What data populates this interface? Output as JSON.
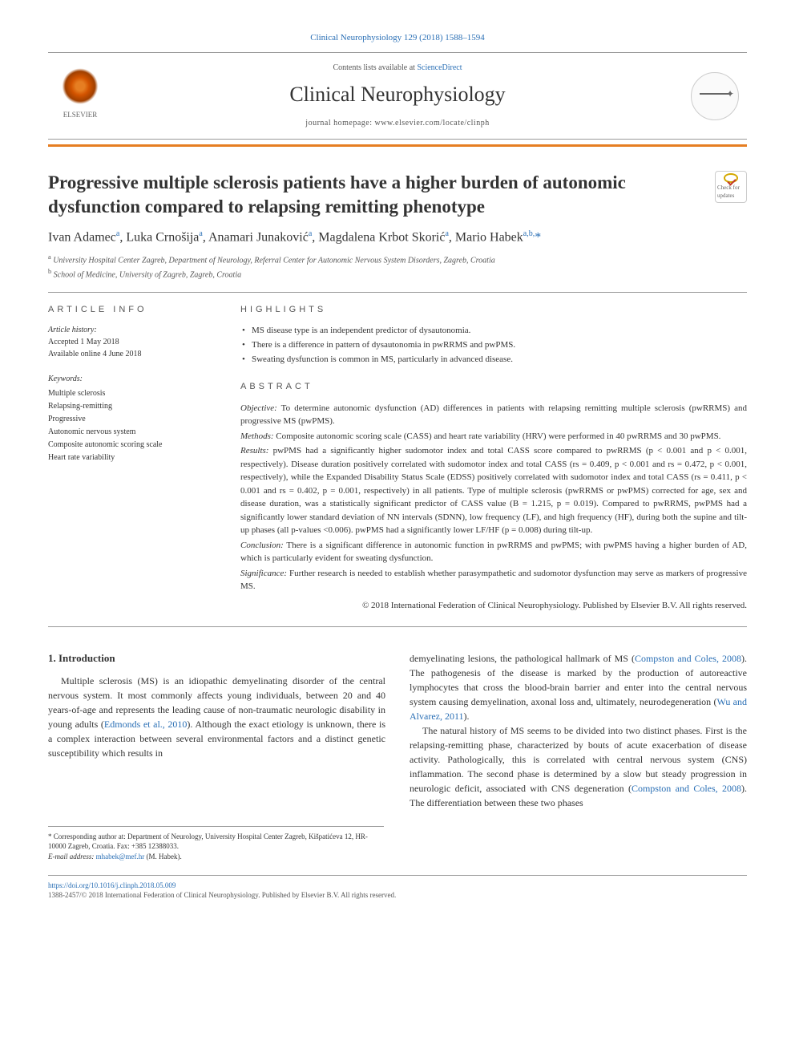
{
  "header": {
    "citation": "Clinical Neurophysiology 129 (2018) 1588–1594",
    "contents_prefix": "Contents lists available at ",
    "contents_link": "ScienceDirect",
    "journal_name": "Clinical Neurophysiology",
    "homepage_prefix": "journal homepage: ",
    "homepage_url": "www.elsevier.com/locate/clinph",
    "publisher_name": "ELSEVIER"
  },
  "article": {
    "title": "Progressive multiple sclerosis patients have a higher burden of autonomic dysfunction compared to relapsing remitting phenotype",
    "check_badge": "Check for updates",
    "authors_html": "Ivan Adamec<sup>a</sup>, Luka Crnošija<sup>a</sup>, Anamari Junaković<sup>a</sup>, Magdalena Krbot Skorić<sup>a</sup>, Mario Habek<sup>a,b,</sup><span class='corr'>*</span>",
    "affiliations": [
      {
        "sup": "a",
        "text": "University Hospital Center Zagreb, Department of Neurology, Referral Center for Autonomic Nervous System Disorders, Zagreb, Croatia"
      },
      {
        "sup": "b",
        "text": "School of Medicine, University of Zagreb, Zagreb, Croatia"
      }
    ]
  },
  "info": {
    "heading": "ARTICLE INFO",
    "history_label": "Article history:",
    "accepted": "Accepted 1 May 2018",
    "online": "Available online 4 June 2018",
    "keywords_label": "Keywords:",
    "keywords": [
      "Multiple sclerosis",
      "Relapsing-remitting",
      "Progressive",
      "Autonomic nervous system",
      "Composite autonomic scoring scale",
      "Heart rate variability"
    ]
  },
  "highlights": {
    "heading": "HIGHLIGHTS",
    "items": [
      "MS disease type is an independent predictor of dysautonomia.",
      "There is a difference in pattern of dysautonomia in pwRRMS and pwPMS.",
      "Sweating dysfunction is common in MS, particularly in advanced disease."
    ]
  },
  "abstract": {
    "heading": "ABSTRACT",
    "sections": [
      {
        "label": "Objective:",
        "text": " To determine autonomic dysfunction (AD) differences in patients with relapsing remitting multiple sclerosis (pwRRMS) and progressive MS (pwPMS)."
      },
      {
        "label": "Methods:",
        "text": " Composite autonomic scoring scale (CASS) and heart rate variability (HRV) were performed in 40 pwRRMS and 30 pwPMS."
      },
      {
        "label": "Results:",
        "text": " pwPMS had a significantly higher sudomotor index and total CASS score compared to pwRRMS (p < 0.001 and p < 0.001, respectively). Disease duration positively correlated with sudomotor index and total CASS (rs = 0.409, p < 0.001 and rs = 0.472, p < 0.001, respectively), while the Expanded Disability Status Scale (EDSS) positively correlated with sudomotor index and total CASS (rs = 0.411, p < 0.001 and rs = 0.402, p = 0.001, respectively) in all patients. Type of multiple sclerosis (pwRRMS or pwPMS) corrected for age, sex and disease duration, was a statistically significant predictor of CASS value (B = 1.215, p = 0.019). Compared to pwRRMS, pwPMS had a significantly lower standard deviation of NN intervals (SDNN), low frequency (LF), and high frequency (HF), during both the supine and tilt-up phases (all p-values <0.006). pwPMS had a significantly lower LF/HF (p = 0.008) during tilt-up."
      },
      {
        "label": "Conclusion:",
        "text": " There is a significant difference in autonomic function in pwRRMS and pwPMS; with pwPMS having a higher burden of AD, which is particularly evident for sweating dysfunction."
      },
      {
        "label": "Significance:",
        "text": " Further research is needed to establish whether parasympathetic and sudomotor dysfunction may serve as markers of progressive MS."
      }
    ],
    "copyright": "© 2018 International Federation of Clinical Neurophysiology. Published by Elsevier B.V. All rights reserved."
  },
  "body": {
    "intro_heading": "1. Introduction",
    "col1_p1_pre": "Multiple sclerosis (MS) is an idiopathic demyelinating disorder of the central nervous system. It most commonly affects young individuals, between 20 and 40 years-of-age and represents the leading cause of non-traumatic neurologic disability in young adults (",
    "col1_p1_link": "Edmonds et al., 2010",
    "col1_p1_post": "). Although the exact etiology is unknown, there is a complex interaction between several environmental factors and a distinct genetic susceptibility which results in",
    "col2_p1_pre": "demyelinating lesions, the pathological hallmark of MS (",
    "col2_p1_link1": "Compston and Coles, 2008",
    "col2_p1_mid": "). The pathogenesis of the disease is marked by the production of autoreactive lymphocytes that cross the blood-brain barrier and enter into the central nervous system causing demyelination, axonal loss and, ultimately, neurodegeneration (",
    "col2_p1_link2": "Wu and Alvarez, 2011",
    "col2_p1_post": ").",
    "col2_p2_pre": "The natural history of MS seems to be divided into two distinct phases. First is the relapsing-remitting phase, characterized by bouts of acute exacerbation of disease activity. Pathologically, this is correlated with central nervous system (CNS) inflammation. The second phase is determined by a slow but steady progression in neurologic deficit, associated with CNS degeneration (",
    "col2_p2_link": "Compston and Coles, 2008",
    "col2_p2_post": "). The differentiation between these two phases"
  },
  "footnotes": {
    "corr_marker": "*",
    "corr_text": " Corresponding author at: Department of Neurology, University Hospital Center Zagreb, Kišpatićeva 12, HR-10000 Zagreb, Croatia. Fax: +385 12388033.",
    "email_label": "E-mail address: ",
    "email": "mhabek@mef.hr",
    "email_name": " (M. Habek)."
  },
  "footer": {
    "doi": "https://doi.org/10.1016/j.clinph.2018.05.009",
    "issn_line": "1388-2457/© 2018 International Federation of Clinical Neurophysiology. Published by Elsevier B.V. All rights reserved."
  },
  "colors": {
    "link": "#2a6fb5",
    "accent": "#e67e22",
    "text": "#333333",
    "muted": "#555555",
    "border": "#999999"
  }
}
